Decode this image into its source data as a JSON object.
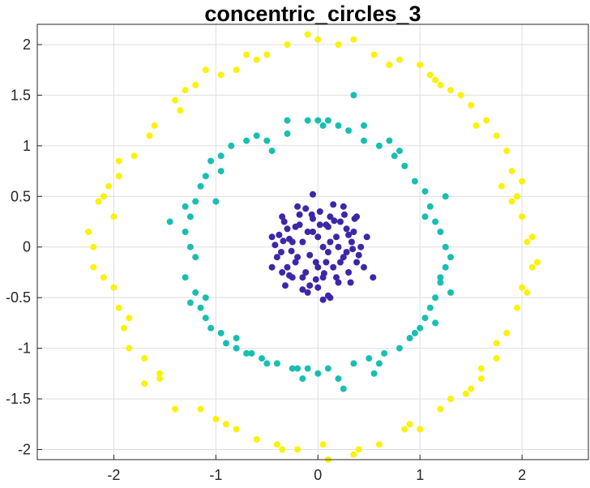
{
  "chart_data": {
    "type": "scatter",
    "title": "concentric_circles_3",
    "xlabel": "",
    "ylabel": "",
    "xlim": [
      -2.75,
      2.65
    ],
    "ylim": [
      -2.1,
      2.2
    ],
    "xticks": [
      -2,
      -1,
      0,
      1,
      2
    ],
    "yticks": [
      -2,
      -1.5,
      -1,
      -0.5,
      0,
      0.5,
      1,
      1.5,
      2
    ],
    "xtick_labels": [
      "-2",
      "-1",
      "0",
      "1",
      "2"
    ],
    "ytick_labels": [
      "-2",
      "-1.5",
      "-1",
      "-0.5",
      "0",
      "0.5",
      "1",
      "1.5",
      "2"
    ],
    "grid": true,
    "legend": "none",
    "series": [
      {
        "color": "#3e26a8",
        "points": [
          [
            -0.42,
            0.02
          ],
          [
            -0.38,
            0.12
          ],
          [
            -0.36,
            -0.05
          ],
          [
            -0.33,
            0.25
          ],
          [
            -0.3,
            -0.2
          ],
          [
            -0.28,
            0.08
          ],
          [
            -0.25,
            -0.3
          ],
          [
            -0.22,
            0.2
          ],
          [
            -0.2,
            -0.1
          ],
          [
            -0.18,
            0.32
          ],
          [
            -0.15,
            0.05
          ],
          [
            -0.12,
            -0.25
          ],
          [
            -0.1,
            0.15
          ],
          [
            -0.08,
            -0.38
          ],
          [
            -0.05,
            0.28
          ],
          [
            -0.02,
            -0.15
          ],
          [
            0.0,
            0.1
          ],
          [
            0.02,
            0.35
          ],
          [
            0.05,
            -0.3
          ],
          [
            0.08,
            0.22
          ],
          [
            0.1,
            -0.05
          ],
          [
            0.12,
            0.3
          ],
          [
            0.15,
            -0.2
          ],
          [
            0.18,
            0.1
          ],
          [
            0.2,
            -0.35
          ],
          [
            0.22,
            0.25
          ],
          [
            0.25,
            -0.1
          ],
          [
            0.28,
            0.18
          ],
          [
            0.3,
            -0.25
          ],
          [
            0.33,
            0.05
          ],
          [
            0.36,
            0.28
          ],
          [
            0.38,
            -0.15
          ],
          [
            0.42,
            0.0
          ],
          [
            -0.2,
            0.4
          ],
          [
            0.15,
            0.42
          ],
          [
            -0.1,
            -0.45
          ],
          [
            0.1,
            -0.48
          ],
          [
            -0.05,
            0.52
          ],
          [
            -0.32,
            -0.38
          ],
          [
            0.38,
            0.3
          ],
          [
            -0.35,
            0.3
          ],
          [
            0.32,
            -0.35
          ],
          [
            0.54,
            -0.3
          ],
          [
            0.48,
            0.1
          ],
          [
            -0.45,
            -0.2
          ],
          [
            0.0,
            -0.4
          ],
          [
            0.25,
            0.4
          ],
          [
            -0.25,
            0.05
          ],
          [
            0.05,
            0.0
          ],
          [
            -0.15,
            -0.3
          ],
          [
            0.2,
            0.0
          ],
          [
            0.0,
            -0.2
          ],
          [
            0.1,
            0.2
          ],
          [
            -0.3,
            0.18
          ],
          [
            0.3,
            0.12
          ],
          [
            0.08,
            -0.15
          ],
          [
            -0.4,
            -0.1
          ],
          [
            0.4,
            -0.08
          ],
          [
            -0.12,
            0.38
          ],
          [
            0.28,
            -0.05
          ],
          [
            0.12,
            -0.5
          ],
          [
            -0.15,
            -0.42
          ],
          [
            0.05,
            -0.52
          ],
          [
            -0.28,
            -0.28
          ],
          [
            0.18,
            -0.3
          ],
          [
            -0.35,
            -0.25
          ],
          [
            0.35,
            0.15
          ],
          [
            -0.05,
            0.15
          ],
          [
            0.22,
            -0.15
          ],
          [
            -0.22,
            -0.15
          ],
          [
            0.45,
            -0.2
          ],
          [
            -0.45,
            0.1
          ],
          [
            0.12,
            0.05
          ],
          [
            -0.08,
            -0.08
          ],
          [
            0.26,
            0.32
          ],
          [
            -0.18,
            0.22
          ],
          [
            0.02,
            0.22
          ],
          [
            -0.02,
            -0.32
          ],
          [
            0.16,
            0.26
          ],
          [
            -0.26,
            -0.04
          ],
          [
            0.34,
            -0.02
          ],
          [
            -0.34,
            0.06
          ],
          [
            0.06,
            -0.26
          ],
          [
            -0.06,
            0.32
          ]
        ]
      },
      {
        "color": "#18bfb0",
        "points": [
          [
            -0.1,
            1.25
          ],
          [
            0.0,
            1.25
          ],
          [
            0.1,
            1.25
          ],
          [
            0.2,
            1.2
          ],
          [
            0.35,
            1.5
          ],
          [
            -0.3,
            1.12
          ],
          [
            -0.5,
            1.05
          ],
          [
            -0.7,
            1.05
          ],
          [
            -0.85,
            1.0
          ],
          [
            -0.95,
            0.9
          ],
          [
            -1.05,
            0.85
          ],
          [
            -1.1,
            0.7
          ],
          [
            -1.15,
            0.6
          ],
          [
            -1.2,
            0.45
          ],
          [
            -1.25,
            0.3
          ],
          [
            -1.3,
            0.15
          ],
          [
            -1.25,
            0.0
          ],
          [
            -1.2,
            -0.1
          ],
          [
            -1.3,
            -0.3
          ],
          [
            -1.2,
            -0.45
          ],
          [
            -1.15,
            -0.6
          ],
          [
            -1.1,
            -0.7
          ],
          [
            -1.05,
            -0.8
          ],
          [
            -0.95,
            -0.85
          ],
          [
            -0.9,
            -0.95
          ],
          [
            -0.8,
            -1.0
          ],
          [
            -0.7,
            -1.05
          ],
          [
            -0.55,
            -1.1
          ],
          [
            -0.4,
            -1.15
          ],
          [
            -0.25,
            -1.2
          ],
          [
            -0.1,
            -1.2
          ],
          [
            0.0,
            -1.25
          ],
          [
            0.1,
            -1.2
          ],
          [
            0.2,
            -1.3
          ],
          [
            0.35,
            -1.15
          ],
          [
            0.5,
            -1.1
          ],
          [
            0.65,
            -1.05
          ],
          [
            0.8,
            -1.0
          ],
          [
            0.9,
            -0.9
          ],
          [
            1.0,
            -0.8
          ],
          [
            1.05,
            -0.7
          ],
          [
            1.1,
            -0.6
          ],
          [
            1.15,
            -0.5
          ],
          [
            1.2,
            -0.35
          ],
          [
            1.25,
            -0.2
          ],
          [
            1.3,
            -0.1
          ],
          [
            1.25,
            0.0
          ],
          [
            1.2,
            0.15
          ],
          [
            1.15,
            0.25
          ],
          [
            1.1,
            0.4
          ],
          [
            1.05,
            0.55
          ],
          [
            0.95,
            0.65
          ],
          [
            0.85,
            0.8
          ],
          [
            0.75,
            0.9
          ],
          [
            0.6,
            1.0
          ],
          [
            0.45,
            1.05
          ],
          [
            0.3,
            1.15
          ],
          [
            -1.45,
            0.25
          ],
          [
            1.25,
            0.5
          ],
          [
            1.2,
            -0.3
          ],
          [
            -1.25,
            -0.55
          ],
          [
            0.25,
            -1.4
          ],
          [
            -0.2,
            -1.2
          ],
          [
            -0.6,
            1.1
          ],
          [
            0.8,
            0.95
          ],
          [
            -1.0,
            0.45
          ],
          [
            1.15,
            -0.75
          ],
          [
            -0.8,
            -0.9
          ],
          [
            0.55,
            -1.25
          ],
          [
            0.7,
            1.05
          ],
          [
            -0.3,
            1.25
          ],
          [
            -1.1,
            -0.5
          ],
          [
            -0.5,
            -1.15
          ],
          [
            0.6,
            -1.15
          ],
          [
            1.3,
            -0.45
          ],
          [
            -1.3,
            0.4
          ],
          [
            -0.45,
            0.95
          ],
          [
            0.45,
            1.2
          ],
          [
            -0.95,
            0.75
          ],
          [
            0.95,
            -0.85
          ],
          [
            -0.65,
            -1.05
          ],
          [
            0.05,
            1.2
          ],
          [
            -0.15,
            -1.3
          ],
          [
            1.05,
            0.3
          ]
        ]
      },
      {
        "color": "#f9f20a",
        "points": [
          [
            -0.3,
            2.0
          ],
          [
            0.0,
            2.05
          ],
          [
            0.2,
            2.0
          ],
          [
            -0.5,
            1.9
          ],
          [
            -0.7,
            1.9
          ],
          [
            -0.8,
            1.75
          ],
          [
            -0.95,
            1.7
          ],
          [
            -1.2,
            1.6
          ],
          [
            -1.35,
            1.35
          ],
          [
            -1.6,
            1.2
          ],
          [
            -1.8,
            0.9
          ],
          [
            -1.95,
            0.7
          ],
          [
            -2.1,
            0.5
          ],
          [
            -2.25,
            0.15
          ],
          [
            -2.2,
            -0.2
          ],
          [
            -2.0,
            -0.4
          ],
          [
            -1.95,
            -0.6
          ],
          [
            -1.9,
            -0.8
          ],
          [
            -1.85,
            -1.0
          ],
          [
            -1.7,
            -1.1
          ],
          [
            -1.55,
            -1.25
          ],
          [
            -1.4,
            -1.6
          ],
          [
            -1.15,
            -1.6
          ],
          [
            -1.0,
            -1.7
          ],
          [
            -0.8,
            -1.8
          ],
          [
            -0.6,
            -1.9
          ],
          [
            -0.4,
            -1.95
          ],
          [
            -0.2,
            -2.0
          ],
          [
            0.1,
            -2.1
          ],
          [
            0.4,
            -2.0
          ],
          [
            0.6,
            -1.95
          ],
          [
            0.85,
            -1.8
          ],
          [
            1.0,
            -1.8
          ],
          [
            1.2,
            -1.6
          ],
          [
            1.3,
            -1.5
          ],
          [
            1.5,
            -1.4
          ],
          [
            1.6,
            -1.2
          ],
          [
            1.75,
            -1.1
          ],
          [
            1.85,
            -0.85
          ],
          [
            1.95,
            -0.6
          ],
          [
            2.0,
            -0.4
          ],
          [
            2.1,
            -0.2
          ],
          [
            2.05,
            0.05
          ],
          [
            2.0,
            0.3
          ],
          [
            1.95,
            0.5
          ],
          [
            1.9,
            0.75
          ],
          [
            1.85,
            0.95
          ],
          [
            1.75,
            1.1
          ],
          [
            1.65,
            1.25
          ],
          [
            1.5,
            1.4
          ],
          [
            1.3,
            1.55
          ],
          [
            1.1,
            1.7
          ],
          [
            1.0,
            1.8
          ],
          [
            0.8,
            1.85
          ],
          [
            0.55,
            1.9
          ],
          [
            0.35,
            2.05
          ],
          [
            -1.4,
            1.45
          ],
          [
            1.4,
            1.5
          ],
          [
            -2.0,
            0.3
          ],
          [
            1.8,
            0.6
          ],
          [
            -1.7,
            -1.35
          ],
          [
            1.45,
            -1.45
          ],
          [
            -2.15,
            0.45
          ],
          [
            2.15,
            -0.15
          ],
          [
            -0.1,
            2.1
          ],
          [
            0.05,
            -1.95
          ],
          [
            -1.3,
            1.55
          ],
          [
            1.15,
            1.65
          ],
          [
            -1.85,
            -0.7
          ],
          [
            1.75,
            -0.95
          ],
          [
            -0.9,
            -1.75
          ],
          [
            0.9,
            -1.75
          ],
          [
            -2.05,
            0.6
          ],
          [
            2.0,
            0.65
          ],
          [
            -0.6,
            1.85
          ],
          [
            0.7,
            1.8
          ],
          [
            -1.55,
            -1.3
          ],
          [
            1.6,
            -1.3
          ],
          [
            -2.1,
            -0.3
          ],
          [
            2.05,
            -0.45
          ],
          [
            -1.95,
            0.85
          ],
          [
            1.9,
            0.45
          ],
          [
            -0.35,
            -2.0
          ],
          [
            0.35,
            -2.05
          ],
          [
            -1.1,
            1.75
          ],
          [
            1.2,
            1.6
          ],
          [
            -1.65,
            1.1
          ],
          [
            1.55,
            1.2
          ],
          [
            -2.2,
            0.0
          ],
          [
            2.1,
            0.1
          ]
        ]
      }
    ]
  }
}
